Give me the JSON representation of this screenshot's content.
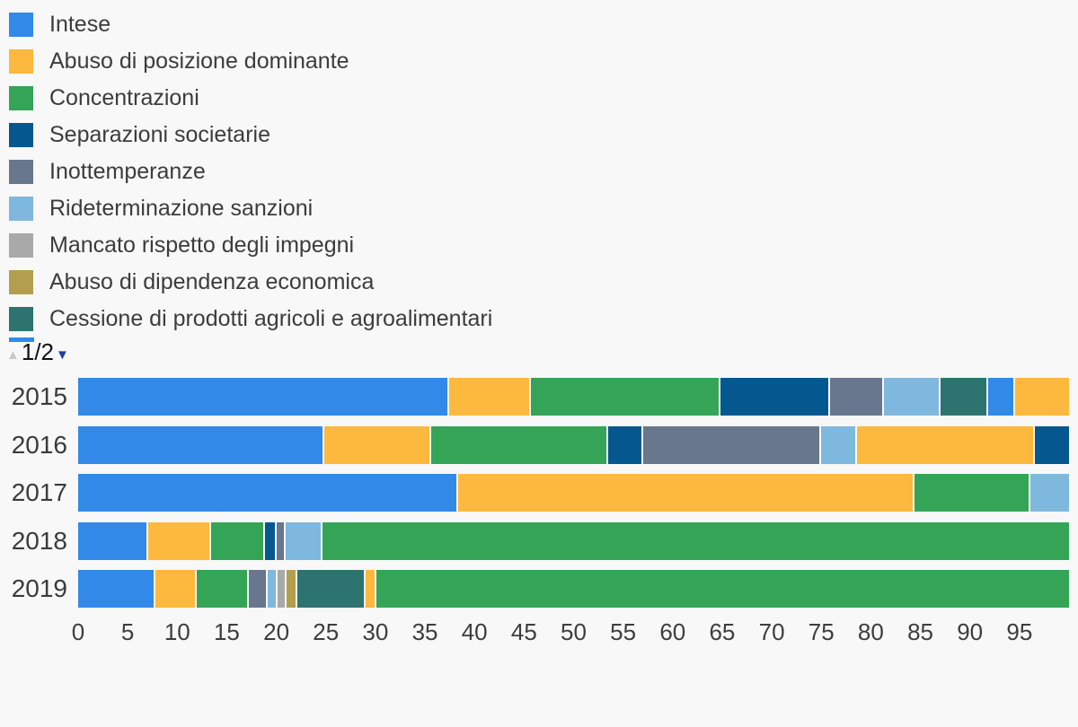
{
  "palette": {
    "blue": "#3289e8",
    "orange": "#fdb93d",
    "green": "#34a456",
    "dark_blue": "#05588f",
    "slate": "#68778d",
    "light_blue": "#7fb8de",
    "gray": "#a9a9a9",
    "olive": "#b39e4e",
    "teal": "#2d7370"
  },
  "legend": {
    "items": [
      {
        "label": "Intese",
        "color": "blue"
      },
      {
        "label": "Abuso di posizione dominante",
        "color": "orange"
      },
      {
        "label": "Concentrazioni",
        "color": "green"
      },
      {
        "label": "Separazioni societarie",
        "color": "dark_blue"
      },
      {
        "label": "Inottemperanze",
        "color": "slate"
      },
      {
        "label": "Rideterminazione sanzioni",
        "color": "light_blue"
      },
      {
        "label": "Mancato rispetto degli impegni",
        "color": "gray"
      },
      {
        "label": "Abuso di dipendenza economica",
        "color": "olive"
      },
      {
        "label": "Cessione di prodotti agricoli e agroalimentari",
        "color": "teal"
      }
    ],
    "pager": {
      "label": "1/2",
      "up_icon": "▲",
      "down_icon": "▼",
      "up_icon_color": "#c9c9c9",
      "down_icon_color": "#1e3ca8",
      "next_page_swatch_color": "blue"
    }
  },
  "chart_data": {
    "type": "bar",
    "orientation": "horizontal",
    "stacked": true,
    "categories": [
      "2015",
      "2016",
      "2017",
      "2018",
      "2019"
    ],
    "x_axis": {
      "min": 0,
      "max": 100,
      "ticks": [
        0,
        5,
        10,
        15,
        20,
        25,
        30,
        35,
        40,
        45,
        50,
        55,
        60,
        65,
        70,
        75,
        80,
        85,
        90,
        95
      ]
    },
    "rows": [
      {
        "year": "2015",
        "segments": [
          {
            "label": "Intese",
            "color": "blue",
            "value": 37.8
          },
          {
            "label": "Abuso di posizione dominante",
            "color": "orange",
            "value": 8.2
          },
          {
            "label": "Concentrazioni",
            "color": "green",
            "value": 19.2
          },
          {
            "label": "Separazioni societarie",
            "color": "dark_blue",
            "value": 11.1
          },
          {
            "label": "Inottemperanze",
            "color": "slate",
            "value": 5.3
          },
          {
            "label": "Rideterminazione sanzioni",
            "color": "light_blue",
            "value": 5.6
          },
          {
            "label": "Cessione di prodotti agricoli e agroalimentari",
            "color": "teal",
            "value": 4.7
          },
          {
            "label": null,
            "color": "blue",
            "value": 2.6
          },
          {
            "label": null,
            "color": "orange",
            "value": 5.5
          }
        ]
      },
      {
        "year": "2016",
        "segments": [
          {
            "label": "Intese",
            "color": "blue",
            "value": 25.0
          },
          {
            "label": "Abuso di posizione dominante",
            "color": "orange",
            "value": 10.7
          },
          {
            "label": "Concentrazioni",
            "color": "green",
            "value": 17.9
          },
          {
            "label": "Separazioni societarie",
            "color": "dark_blue",
            "value": 3.4
          },
          {
            "label": "Inottemperanze",
            "color": "slate",
            "value": 18.0
          },
          {
            "label": "Rideterminazione sanzioni",
            "color": "light_blue",
            "value": 3.5
          },
          {
            "label": null,
            "color": "orange",
            "value": 18.0
          },
          {
            "label": null,
            "color": "dark_blue",
            "value": 3.5
          }
        ]
      },
      {
        "year": "2017",
        "segments": [
          {
            "label": "Intese",
            "color": "blue",
            "value": 38.4
          },
          {
            "label": "Abuso di posizione dominante",
            "color": "orange",
            "value": 46.1
          },
          {
            "label": "Concentrazioni",
            "color": "green",
            "value": 11.6
          },
          {
            "label": "Rideterminazione sanzioni",
            "color": "light_blue",
            "value": 3.9
          }
        ]
      },
      {
        "year": "2018",
        "segments": [
          {
            "label": "Intese",
            "color": "blue",
            "value": 7.0
          },
          {
            "label": "Abuso di posizione dominante",
            "color": "orange",
            "value": 6.2
          },
          {
            "label": "Concentrazioni",
            "color": "green",
            "value": 5.3
          },
          {
            "label": "Separazioni societarie",
            "color": "dark_blue",
            "value": 1.0
          },
          {
            "label": "Inottemperanze",
            "color": "slate",
            "value": 0.8
          },
          {
            "label": "Rideterminazione sanzioni",
            "color": "light_blue",
            "value": 3.5
          },
          {
            "label": null,
            "color": "green",
            "value": 76.2
          }
        ]
      },
      {
        "year": "2019",
        "segments": [
          {
            "label": "Intese",
            "color": "blue",
            "value": 7.7
          },
          {
            "label": "Abuso di posizione dominante",
            "color": "orange",
            "value": 4.1
          },
          {
            "label": "Concentrazioni",
            "color": "green",
            "value": 5.2
          },
          {
            "label": "Inottemperanze",
            "color": "slate",
            "value": 1.7
          },
          {
            "label": "Rideterminazione sanzioni",
            "color": "light_blue",
            "value": 0.8
          },
          {
            "label": "Mancato rispetto degli impegni",
            "color": "gray",
            "value": 0.8
          },
          {
            "label": "Abuso di dipendenza economica",
            "color": "olive",
            "value": 0.9
          },
          {
            "label": "Cessione di prodotti agricoli e agroalimentari",
            "color": "teal",
            "value": 6.8
          },
          {
            "label": null,
            "color": "orange",
            "value": 0.9
          },
          {
            "label": null,
            "color": "green",
            "value": 71.1
          }
        ]
      }
    ]
  }
}
